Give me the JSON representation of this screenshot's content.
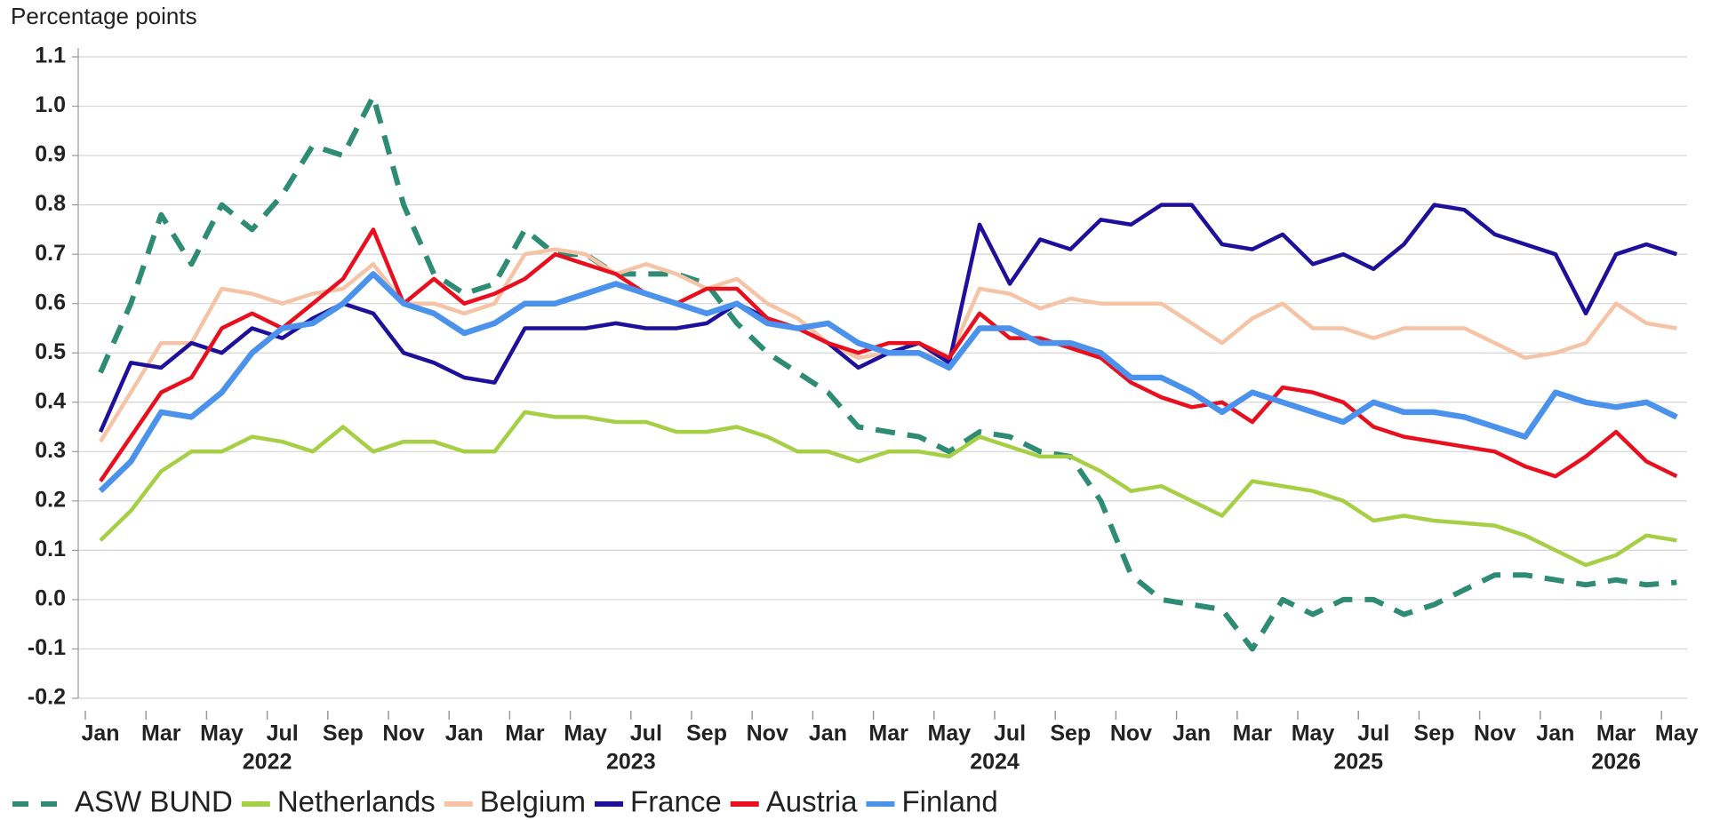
{
  "chart_data": {
    "type": "line",
    "title": "Percentage points",
    "x": [
      "2022-01",
      "2022-02",
      "2022-03",
      "2022-04",
      "2022-05",
      "2022-06",
      "2022-07",
      "2022-08",
      "2022-09",
      "2022-10",
      "2022-11",
      "2022-12",
      "2023-01",
      "2023-02",
      "2023-03",
      "2023-04",
      "2023-05",
      "2023-06",
      "2023-07",
      "2023-08",
      "2023-09",
      "2023-10",
      "2023-11",
      "2023-12",
      "2024-01",
      "2024-02",
      "2024-03",
      "2024-04",
      "2024-05",
      "2024-06",
      "2024-07",
      "2024-08",
      "2024-09",
      "2024-10",
      "2024-11",
      "2024-12",
      "2025-01",
      "2025-02",
      "2025-03",
      "2025-04",
      "2025-05",
      "2025-06",
      "2025-07",
      "2025-08",
      "2025-09",
      "2025-10",
      "2025-11",
      "2025-12",
      "2026-01",
      "2026-02",
      "2026-03",
      "2026-04",
      "2026-05"
    ],
    "series": [
      {
        "name": "ASW BUND",
        "color": "#2e8b74",
        "dashed": true,
        "values": [
          0.46,
          0.6,
          0.78,
          0.68,
          0.8,
          0.75,
          0.82,
          0.92,
          0.9,
          1.02,
          0.8,
          0.66,
          0.62,
          0.64,
          0.75,
          0.7,
          0.7,
          0.66,
          0.66,
          0.66,
          0.64,
          0.56,
          0.5,
          0.46,
          0.42,
          0.35,
          0.34,
          0.33,
          0.3,
          0.34,
          0.33,
          0.3,
          0.29,
          0.2,
          0.05,
          0.0,
          -0.01,
          -0.02,
          -0.1,
          0.0,
          -0.03,
          0.0,
          0.0,
          -0.03,
          -0.01,
          0.02,
          0.05,
          0.05,
          0.04,
          0.03,
          0.04,
          0.03,
          0.035
        ]
      },
      {
        "name": "Netherlands",
        "color": "#a6cf45",
        "values": [
          0.12,
          0.18,
          0.26,
          0.3,
          0.3,
          0.33,
          0.32,
          0.3,
          0.35,
          0.3,
          0.32,
          0.32,
          0.3,
          0.3,
          0.38,
          0.37,
          0.37,
          0.36,
          0.36,
          0.34,
          0.34,
          0.35,
          0.33,
          0.3,
          0.3,
          0.28,
          0.3,
          0.3,
          0.29,
          0.33,
          0.31,
          0.29,
          0.29,
          0.26,
          0.22,
          0.23,
          0.2,
          0.17,
          0.24,
          0.23,
          0.22,
          0.2,
          0.16,
          0.17,
          0.16,
          0.155,
          0.15,
          0.13,
          0.1,
          0.07,
          0.09,
          0.13,
          0.12
        ]
      },
      {
        "name": "Belgium",
        "color": "#f5c4a6",
        "values": [
          0.32,
          0.42,
          0.52,
          0.52,
          0.63,
          0.62,
          0.6,
          0.62,
          0.63,
          0.68,
          0.6,
          0.6,
          0.58,
          0.6,
          0.7,
          0.71,
          0.7,
          0.66,
          0.68,
          0.66,
          0.63,
          0.65,
          0.6,
          0.57,
          0.52,
          0.49,
          0.5,
          0.5,
          0.49,
          0.63,
          0.62,
          0.59,
          0.61,
          0.6,
          0.6,
          0.6,
          0.56,
          0.52,
          0.57,
          0.6,
          0.55,
          0.55,
          0.53,
          0.55,
          0.55,
          0.55,
          0.52,
          0.49,
          0.5,
          0.52,
          0.6,
          0.56,
          0.55
        ]
      },
      {
        "name": "France",
        "color": "#1f109c",
        "values": [
          0.34,
          0.48,
          0.47,
          0.52,
          0.5,
          0.55,
          0.53,
          0.57,
          0.6,
          0.58,
          0.5,
          0.48,
          0.45,
          0.44,
          0.55,
          0.55,
          0.55,
          0.56,
          0.55,
          0.55,
          0.56,
          0.6,
          0.57,
          0.55,
          0.52,
          0.47,
          0.5,
          0.52,
          0.48,
          0.76,
          0.64,
          0.73,
          0.71,
          0.77,
          0.76,
          0.8,
          0.8,
          0.72,
          0.71,
          0.74,
          0.68,
          0.7,
          0.67,
          0.72,
          0.8,
          0.79,
          0.74,
          0.72,
          0.7,
          0.58,
          0.7,
          0.72,
          0.7
        ]
      },
      {
        "name": "Austria",
        "color": "#e8101e",
        "values": [
          0.24,
          0.33,
          0.42,
          0.45,
          0.55,
          0.58,
          0.55,
          0.6,
          0.65,
          0.75,
          0.6,
          0.65,
          0.6,
          0.62,
          0.65,
          0.7,
          0.68,
          0.66,
          0.62,
          0.6,
          0.63,
          0.63,
          0.57,
          0.55,
          0.52,
          0.5,
          0.52,
          0.52,
          0.49,
          0.58,
          0.53,
          0.53,
          0.51,
          0.49,
          0.44,
          0.41,
          0.39,
          0.4,
          0.36,
          0.43,
          0.42,
          0.4,
          0.35,
          0.33,
          0.32,
          0.31,
          0.3,
          0.27,
          0.25,
          0.29,
          0.34,
          0.28,
          0.25
        ]
      },
      {
        "name": "Finland",
        "color": "#4b92ec",
        "values": [
          0.22,
          0.28,
          0.38,
          0.37,
          0.42,
          0.5,
          0.55,
          0.56,
          0.6,
          0.66,
          0.6,
          0.58,
          0.54,
          0.56,
          0.6,
          0.6,
          0.62,
          0.64,
          0.62,
          0.6,
          0.58,
          0.6,
          0.56,
          0.55,
          0.56,
          0.52,
          0.5,
          0.5,
          0.47,
          0.55,
          0.55,
          0.52,
          0.52,
          0.5,
          0.45,
          0.45,
          0.42,
          0.38,
          0.42,
          0.4,
          0.38,
          0.36,
          0.4,
          0.38,
          0.38,
          0.37,
          0.35,
          0.33,
          0.42,
          0.4,
          0.39,
          0.4,
          0.37
        ]
      }
    ],
    "ylim": [
      -0.2,
      1.1
    ],
    "yticks": [
      -0.2,
      -0.1,
      {
        "value": 0,
        "label": "0.0"
      },
      0.1,
      0.2,
      0.3,
      0.4,
      0.5,
      0.6,
      0.7,
      0.8,
      0.9,
      {
        "value": 1,
        "label": "1.0"
      },
      1.1
    ],
    "xticks": [
      {
        "value": "2022-01",
        "label": "Jan"
      },
      {
        "value": "2022-03",
        "label": "Mar"
      },
      {
        "value": "2022-05",
        "label": "May"
      },
      {
        "value": "2022-07",
        "label": "Jul"
      },
      {
        "value": "2022-09",
        "label": "Sep"
      },
      {
        "value": "2022-11",
        "label": "Nov"
      },
      {
        "value": "2023-01",
        "label": "Jan"
      },
      {
        "value": "2023-03",
        "label": "Mar"
      },
      {
        "value": "2023-05",
        "label": "May"
      },
      {
        "value": "2023-07",
        "label": "Jul"
      },
      {
        "value": "2023-09",
        "label": "Sep"
      },
      {
        "value": "2023-11",
        "label": "Nov"
      },
      {
        "value": "2024-01",
        "label": "Jan"
      },
      {
        "value": "2024-03",
        "label": "Mar"
      },
      {
        "value": "2024-05",
        "label": "May"
      },
      {
        "value": "2024-07",
        "label": "Jul"
      },
      {
        "value": "2024-09",
        "label": "Sep"
      },
      {
        "value": "2024-11",
        "label": "Nov"
      },
      {
        "value": "2025-01",
        "label": "Jan"
      },
      {
        "value": "2025-03",
        "label": "Mar"
      },
      {
        "value": "2025-05",
        "label": "May"
      },
      {
        "value": "2025-07",
        "label": "Jul"
      },
      {
        "value": "2025-09",
        "label": "Sep"
      },
      {
        "value": "2025-11",
        "label": "Nov"
      },
      {
        "value": "2026-01",
        "label": "Jan"
      },
      {
        "value": "2026-03",
        "label": "Mar"
      },
      {
        "value": "2026-05",
        "label": "May"
      }
    ],
    "years": [
      "2022",
      "2023",
      "2024",
      "2025",
      "2026"
    ],
    "grid": true,
    "legend": "bottom"
  }
}
